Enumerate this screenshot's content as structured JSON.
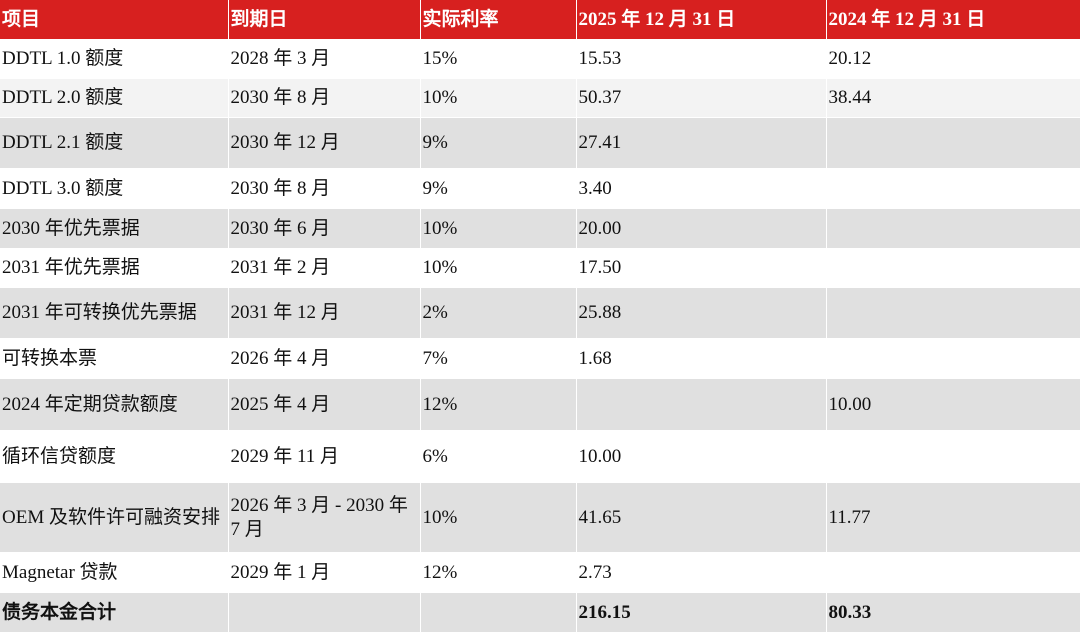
{
  "table": {
    "header": [
      "项目",
      "到期日",
      "实际利率",
      "2025 年 12 月 31 日",
      "2024 年 12 月 31 日"
    ],
    "rows": [
      [
        "DDTL 1.0 额度",
        "2028 年 3 月",
        "15%",
        "15.53",
        "20.12"
      ],
      [
        "DDTL 2.0 额度",
        "2030 年 8 月",
        "10%",
        "50.37",
        "38.44"
      ],
      [
        "DDTL 2.1 额度",
        "2030 年 12 月",
        "9%",
        "27.41",
        null
      ],
      [
        "DDTL 3.0 额度",
        "2030 年 8 月",
        "9%",
        "3.40",
        null
      ],
      [
        "2030 年优先票据",
        "2030 年 6 月",
        "10%",
        "20.00",
        null
      ],
      [
        "2031 年优先票据",
        "2031 年 2 月",
        "10%",
        "17.50",
        null
      ],
      [
        "2031 年可转换优先票据",
        "2031 年 12 月",
        "2%",
        "25.88",
        null
      ],
      [
        "可转换本票",
        "2026 年 4 月",
        "7%",
        "1.68",
        null
      ],
      [
        "2024 年定期贷款额度",
        "2025 年 4 月",
        "12%",
        null,
        "10.00"
      ],
      [
        "循环信贷额度",
        "2029 年 11 月",
        "6%",
        "10.00",
        null
      ],
      [
        "OEM 及软件许可融资安排",
        "2026 年 3 月 - 2030 年 7 月",
        "10%",
        "41.65",
        "11.77"
      ],
      [
        "Magnetar 贷款",
        "2029 年 1 月",
        "12%",
        "2.73",
        null
      ]
    ],
    "total": [
      "债务本金合计",
      null,
      null,
      "216.15",
      "80.33"
    ]
  }
}
